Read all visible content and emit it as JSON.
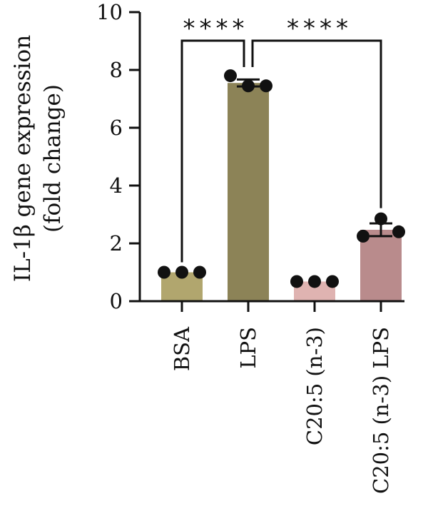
{
  "chart_data": {
    "type": "bar",
    "categories": [
      "BSA",
      "LPS",
      "C20:5 (n-3)",
      "C20:5 (n-3) LPS"
    ],
    "values": [
      1.0,
      7.55,
      0.68,
      2.47
    ],
    "errors": [
      0.0,
      0.12,
      0.0,
      0.22
    ],
    "points": [
      [
        1.0,
        1.0,
        1.0
      ],
      [
        7.8,
        7.45,
        7.45
      ],
      [
        0.68,
        0.68,
        0.68
      ],
      [
        2.25,
        2.85,
        2.4
      ]
    ],
    "colors": [
      "#b1a66e",
      "#8c8357",
      "#dfb3b1",
      "#b98b8c"
    ],
    "ylabel_line1": "IL-1β gene expression",
    "ylabel_line2": "(fold change)",
    "xlabel": "",
    "ylim": [
      0,
      10
    ],
    "yticks": [
      "0",
      "2",
      "4",
      "6",
      "8",
      "10"
    ],
    "significance": [
      {
        "from": 0,
        "to": 1,
        "label": "****"
      },
      {
        "from": 1,
        "to": 3,
        "label": "****"
      }
    ],
    "grid": false,
    "legend": "none"
  }
}
